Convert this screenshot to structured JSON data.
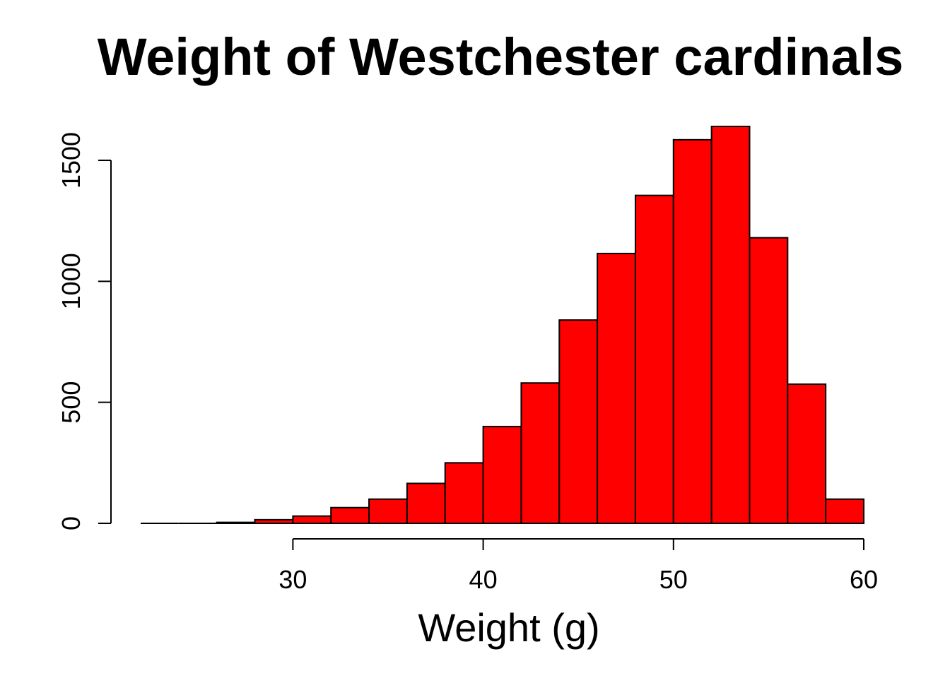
{
  "chart_data": {
    "type": "bar",
    "title": "Weight of Westchester cardinals",
    "xlabel": "Weight (g)",
    "ylabel": "",
    "bins": [
      {
        "from": 22,
        "to": 24,
        "count": 0
      },
      {
        "from": 24,
        "to": 26,
        "count": 1
      },
      {
        "from": 26,
        "to": 28,
        "count": 4
      },
      {
        "from": 28,
        "to": 30,
        "count": 15
      },
      {
        "from": 30,
        "to": 32,
        "count": 30
      },
      {
        "from": 32,
        "to": 34,
        "count": 65
      },
      {
        "from": 34,
        "to": 36,
        "count": 100
      },
      {
        "from": 36,
        "to": 38,
        "count": 165
      },
      {
        "from": 38,
        "to": 40,
        "count": 250
      },
      {
        "from": 40,
        "to": 42,
        "count": 400
      },
      {
        "from": 42,
        "to": 44,
        "count": 580
      },
      {
        "from": 44,
        "to": 46,
        "count": 840
      },
      {
        "from": 46,
        "to": 48,
        "count": 1115
      },
      {
        "from": 48,
        "to": 50,
        "count": 1355
      },
      {
        "from": 50,
        "to": 52,
        "count": 1585
      },
      {
        "from": 52,
        "to": 54,
        "count": 1640
      },
      {
        "from": 54,
        "to": 56,
        "count": 1180
      },
      {
        "from": 56,
        "to": 58,
        "count": 575
      },
      {
        "from": 58,
        "to": 60,
        "count": 100
      }
    ],
    "xticks": [
      30,
      40,
      50,
      60
    ],
    "yticks": [
      0,
      500,
      1000,
      1500
    ],
    "xlim": [
      22,
      60
    ],
    "ylim": [
      0,
      1640
    ],
    "grid": false,
    "colors": {
      "bar_fill": "#ff0000",
      "bar_stroke": "#000000"
    }
  }
}
